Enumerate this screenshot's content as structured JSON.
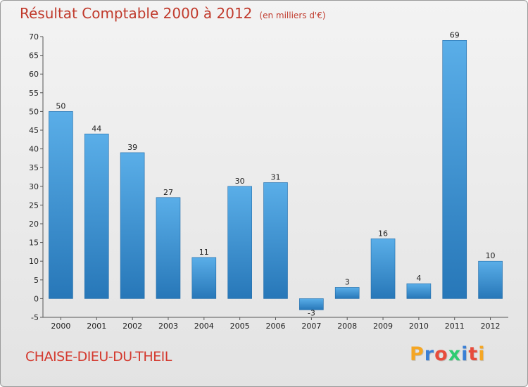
{
  "title": "Résultat Comptable 2000 à 2012",
  "title_unit": "(en milliers d'€)",
  "commune": "CHAISE-DIEU-DU-THEIL",
  "brand": {
    "letters": [
      "P",
      "r",
      "o",
      "x",
      "i",
      "t",
      "i"
    ],
    "colors": [
      "#f5a623",
      "#3a7fd5",
      "#e74c3c",
      "#2ecc71",
      "#3a7fd5",
      "#e74c3c",
      "#f5a623"
    ]
  },
  "colors": {
    "bar_light": "#5aaee8",
    "bar_dark": "#2777b8",
    "title": "#c0392b"
  },
  "chart_data": {
    "type": "bar",
    "title": "Résultat Comptable 2000 à 2012",
    "ylabel": "(en milliers d'€)",
    "categories": [
      "2000",
      "2001",
      "2002",
      "2003",
      "2004",
      "2005",
      "2006",
      "2007",
      "2008",
      "2009",
      "2010",
      "2011",
      "2012"
    ],
    "values": [
      50,
      44,
      39,
      27,
      11,
      30,
      31,
      -3,
      3,
      16,
      4,
      69,
      10
    ],
    "ylim": [
      -5,
      70
    ],
    "yticks": [
      -5,
      0,
      5,
      10,
      15,
      20,
      25,
      30,
      35,
      40,
      45,
      50,
      55,
      60,
      65,
      70
    ],
    "grid": false,
    "legend": "none"
  }
}
